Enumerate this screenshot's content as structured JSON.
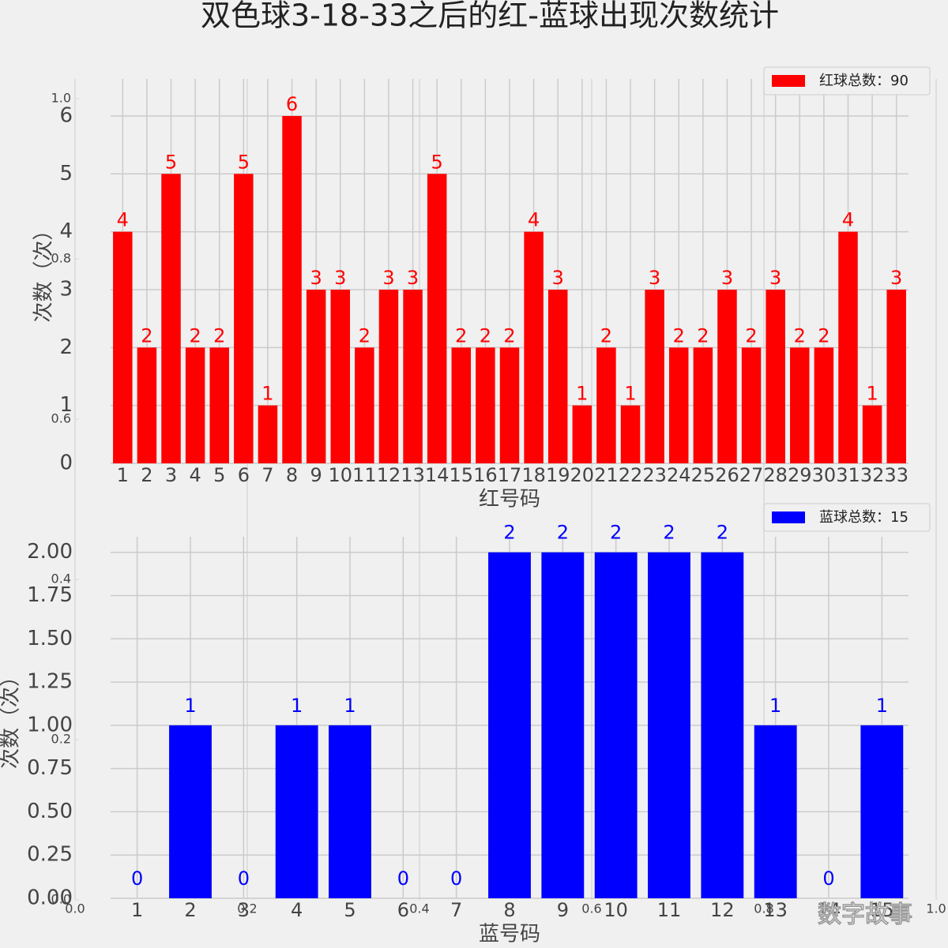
{
  "title": "双色球3-18-33之后的红-蓝球出现次数统计",
  "watermark": "数字故事",
  "chart_data": [
    {
      "type": "bar",
      "xlabel": "红号码",
      "ylabel": "次数（次）",
      "categories": [
        "1",
        "2",
        "3",
        "4",
        "5",
        "6",
        "7",
        "8",
        "9",
        "10",
        "11",
        "12",
        "13",
        "14",
        "15",
        "16",
        "17",
        "18",
        "19",
        "20",
        "21",
        "22",
        "23",
        "24",
        "25",
        "26",
        "27",
        "28",
        "29",
        "30",
        "31",
        "32",
        "33"
      ],
      "series": [
        {
          "name": "红球总数：90",
          "color": "#ff0000",
          "values": [
            4,
            2,
            5,
            2,
            2,
            5,
            1,
            6,
            3,
            3,
            2,
            3,
            3,
            5,
            2,
            2,
            2,
            4,
            3,
            1,
            2,
            1,
            3,
            2,
            2,
            3,
            2,
            3,
            2,
            2,
            4,
            1,
            3
          ]
        }
      ],
      "ylim": [
        0,
        6.64
      ],
      "yticks": [
        0,
        1,
        2,
        3,
        4,
        5,
        6
      ],
      "grid": true,
      "legend": "upper right"
    },
    {
      "type": "bar",
      "xlabel": "蓝号码",
      "ylabel": "次数（次）",
      "categories": [
        "1",
        "2",
        "3",
        "4",
        "5",
        "6",
        "7",
        "8",
        "9",
        "10",
        "11",
        "12",
        "13",
        "14",
        "15"
      ],
      "series": [
        {
          "name": "蓝球总数：15",
          "color": "#0000ff",
          "values": [
            0,
            1,
            0,
            1,
            1,
            0,
            0,
            2,
            2,
            2,
            2,
            2,
            1,
            0,
            1
          ]
        }
      ],
      "ylim": [
        0,
        2.09
      ],
      "yticks": [
        {
          "value": 0,
          "label": "0.00"
        },
        {
          "value": 0.25,
          "label": "0.25"
        },
        {
          "value": 0.5,
          "label": "0.50"
        },
        {
          "value": 0.75,
          "label": "0.75"
        },
        {
          "value": 1,
          "label": "1.00"
        },
        {
          "value": 1.25,
          "label": "1.25"
        },
        {
          "value": 1.5,
          "label": "1.50"
        },
        {
          "value": 1.75,
          "label": "1.75"
        },
        {
          "value": 2,
          "label": "2.00"
        }
      ],
      "grid": true,
      "legend": "upper right"
    },
    {
      "type": "blank",
      "xlim": [
        0,
        1
      ],
      "xticks": [
        {
          "value": 0,
          "label": "0.0"
        },
        {
          "value": 0.2,
          "label": "0.2"
        },
        {
          "value": 0.4,
          "label": "0.4"
        },
        {
          "value": 0.6,
          "label": "0.6"
        },
        {
          "value": 0.8,
          "label": "0.8"
        },
        {
          "value": 1,
          "label": "1.0"
        }
      ],
      "ylim": [
        0,
        1
      ],
      "yticks": [
        {
          "value": 0,
          "label": "0.0"
        },
        {
          "value": 0.2,
          "label": "0.2"
        },
        {
          "value": 0.4,
          "label": "0.4"
        },
        {
          "value": 0.6,
          "label": "0.6"
        },
        {
          "value": 0.8,
          "label": "0.8"
        },
        {
          "value": 1,
          "label": "1.0"
        }
      ]
    }
  ]
}
